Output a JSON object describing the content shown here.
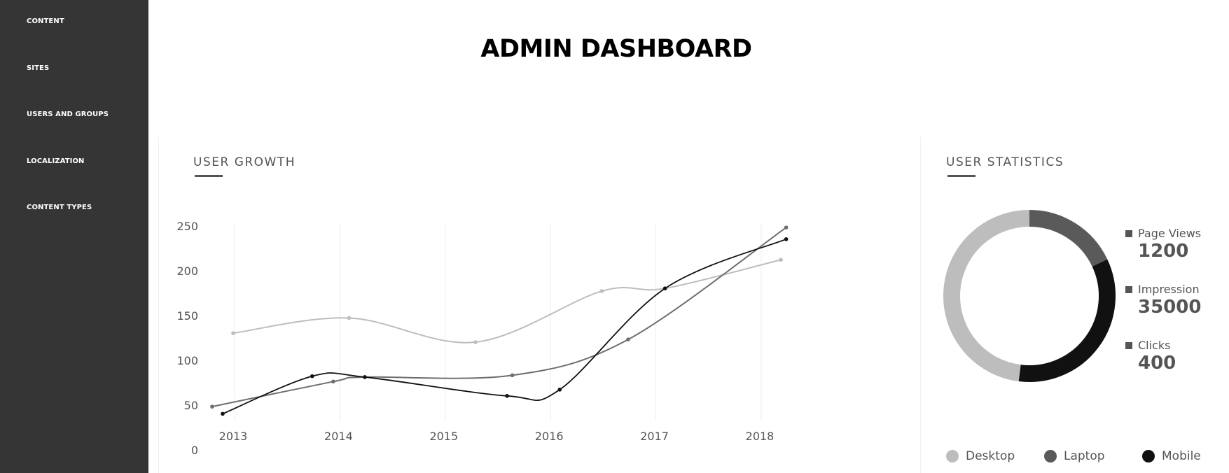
{
  "sidebar": {
    "items": [
      {
        "label": "CONTENT"
      },
      {
        "label": "SITES"
      },
      {
        "label": "USERS AND GROUPS"
      },
      {
        "label": "LOCALIZATION"
      },
      {
        "label": "CONTENT TYPES"
      }
    ]
  },
  "header": {
    "title": "ADMIN DASHBOARD"
  },
  "growth_card": {
    "title": "USER GROWTH"
  },
  "stats_card": {
    "title": "USER STATISTICS",
    "legend": [
      {
        "label": "Page Views",
        "value": "1200"
      },
      {
        "label": "Impression",
        "value": "35000"
      },
      {
        "label": "Clicks",
        "value": "400"
      }
    ],
    "bottom_legend": [
      {
        "label": "Desktop",
        "color": "#bdbdbd"
      },
      {
        "label": "Laptop",
        "color": "#5a5a5a"
      },
      {
        "label": "Mobile",
        "color": "#111111"
      }
    ]
  },
  "chart_data": [
    {
      "type": "line",
      "title": "USER GROWTH",
      "y_ticks": [
        "250",
        "200",
        "150",
        "100",
        "50",
        "0"
      ],
      "x_ticks": [
        "2013",
        "2014",
        "2015",
        "2016",
        "2017",
        "2018"
      ],
      "ylim": [
        0,
        250
      ],
      "grid": "vertical",
      "series": [
        {
          "color": "#bdbdbd",
          "points": [
            [
              2013.0,
              135
            ],
            [
              2014.1,
              152
            ],
            [
              2015.3,
              125
            ],
            [
              2016.5,
              182
            ],
            [
              2017.1,
              185
            ],
            [
              2018.2,
              217
            ]
          ]
        },
        {
          "color": "#6e6e6e",
          "points": [
            [
              2012.8,
              53
            ],
            [
              2013.95,
              81
            ],
            [
              2014.25,
              86
            ],
            [
              2015.65,
              88
            ],
            [
              2016.75,
              128
            ],
            [
              2018.25,
              253
            ]
          ]
        },
        {
          "color": "#111111",
          "points": [
            [
              2012.9,
              45
            ],
            [
              2013.75,
              87
            ],
            [
              2014.25,
              86
            ],
            [
              2015.6,
              65
            ],
            [
              2016.1,
              72
            ],
            [
              2017.1,
              185
            ],
            [
              2018.25,
              240
            ]
          ]
        }
      ]
    },
    {
      "type": "pie",
      "title": "USER STATISTICS",
      "categories": [
        "Desktop",
        "Laptop",
        "Mobile"
      ],
      "values": [
        48,
        18,
        34
      ],
      "colors": [
        "#bdbdbd",
        "#5a5a5a",
        "#111111"
      ]
    }
  ]
}
